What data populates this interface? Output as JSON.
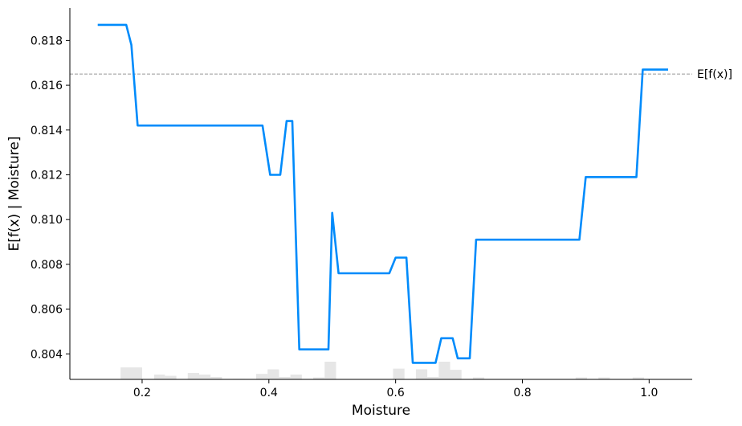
{
  "chart_data": {
    "type": "line",
    "title": "",
    "xlabel": "Moisture",
    "ylabel": "E[f(x) | Moisture]",
    "xlim": [
      0.086,
      1.068
    ],
    "ylim": [
      0.80286,
      0.81945
    ],
    "xticks": [
      0.2,
      0.4,
      0.6,
      0.8,
      1.0
    ],
    "xtick_labels": [
      "0.2",
      "0.4",
      "0.6",
      "0.8",
      "1.0"
    ],
    "yticks": [
      0.804,
      0.806,
      0.808,
      0.81,
      0.812,
      0.814,
      0.816,
      0.818
    ],
    "ytick_labels": [
      "0.804",
      "0.806",
      "0.808",
      "0.810",
      "0.812",
      "0.814",
      "0.816",
      "0.818"
    ],
    "grid": false,
    "line_color": "#008bfb",
    "expected_value": {
      "y": 0.8165,
      "label": "E[f(x)]",
      "color": "#999999"
    },
    "series": [
      {
        "x": [
          0.13,
          0.175,
          0.183,
          0.193,
          0.39,
          0.402,
          0.418,
          0.428,
          0.437,
          0.448,
          0.494,
          0.5,
          0.51,
          0.59,
          0.6,
          0.617,
          0.627,
          0.663,
          0.672,
          0.69,
          0.698,
          0.717,
          0.727,
          0.89,
          0.9,
          0.98,
          0.99,
          1.03
        ],
        "y": [
          0.8187,
          0.8187,
          0.8178,
          0.8142,
          0.8142,
          0.812,
          0.812,
          0.8144,
          0.8144,
          0.8042,
          0.8042,
          0.8103,
          0.8076,
          0.8076,
          0.8083,
          0.8083,
          0.8036,
          0.8036,
          0.8047,
          0.8047,
          0.8038,
          0.8038,
          0.8091,
          0.8091,
          0.8119,
          0.8119,
          0.8167,
          0.8167
        ]
      }
    ],
    "histogram": {
      "color": "#e6e6e6",
      "bins": [
        {
          "x0": 0.166,
          "x1": 0.2,
          "count": 5
        },
        {
          "x0": 0.219,
          "x1": 0.236,
          "count": 2
        },
        {
          "x0": 0.236,
          "x1": 0.254,
          "count": 1.5
        },
        {
          "x0": 0.272,
          "x1": 0.29,
          "count": 2.7
        },
        {
          "x0": 0.29,
          "x1": 0.308,
          "count": 2
        },
        {
          "x0": 0.308,
          "x1": 0.326,
          "count": 1
        },
        {
          "x0": 0.344,
          "x1": 0.362,
          "count": 0.2
        },
        {
          "x0": 0.38,
          "x1": 0.398,
          "count": 2.3
        },
        {
          "x0": 0.398,
          "x1": 0.416,
          "count": 4.2
        },
        {
          "x0": 0.416,
          "x1": 0.434,
          "count": 1
        },
        {
          "x0": 0.434,
          "x1": 0.452,
          "count": 2
        },
        {
          "x0": 0.47,
          "x1": 0.488,
          "count": 0.8
        },
        {
          "x0": 0.488,
          "x1": 0.506,
          "count": 7.4
        },
        {
          "x0": 0.596,
          "x1": 0.614,
          "count": 4.5
        },
        {
          "x0": 0.632,
          "x1": 0.65,
          "count": 4.2
        },
        {
          "x0": 0.65,
          "x1": 0.668,
          "count": 1
        },
        {
          "x0": 0.668,
          "x1": 0.686,
          "count": 7.4
        },
        {
          "x0": 0.686,
          "x1": 0.704,
          "count": 4
        },
        {
          "x0": 0.722,
          "x1": 0.74,
          "count": 0.8
        },
        {
          "x0": 0.884,
          "x1": 0.902,
          "count": 0.8
        },
        {
          "x0": 0.92,
          "x1": 0.938,
          "count": 0.8
        },
        {
          "x0": 0.974,
          "x1": 0.992,
          "count": 0.8
        }
      ]
    }
  }
}
